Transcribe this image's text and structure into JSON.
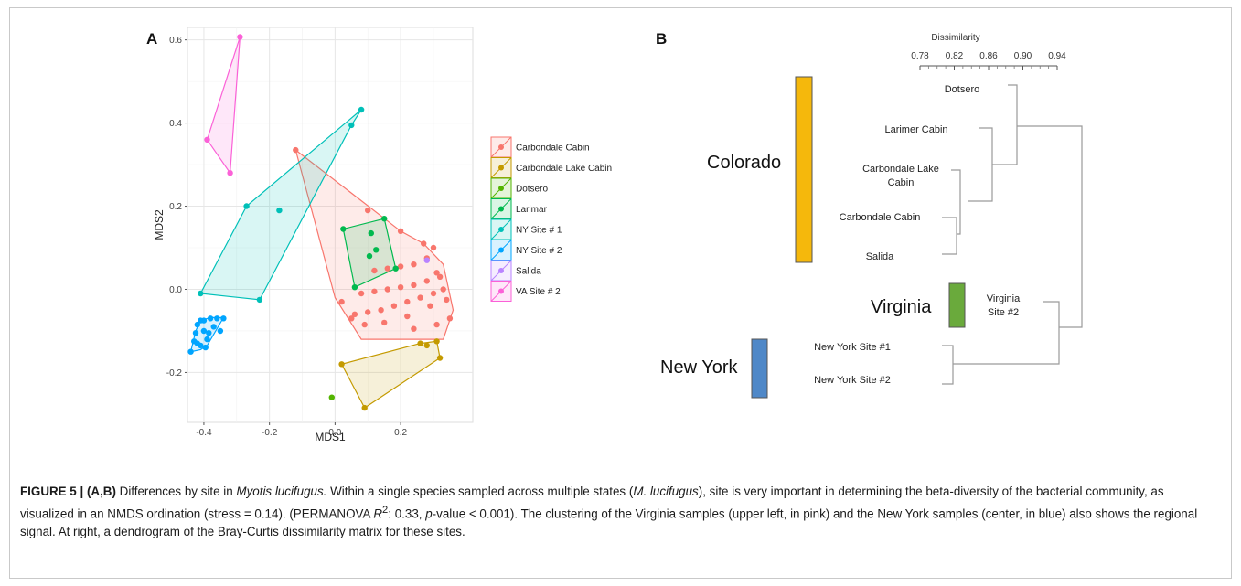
{
  "panel_a": {
    "label": "A",
    "chart_data": {
      "type": "scatter",
      "xlabel": "MDS1",
      "ylabel": "MDS2",
      "xlim": [
        -0.45,
        0.42
      ],
      "ylim": [
        -0.32,
        0.63
      ],
      "x_ticks": [
        -0.4,
        -0.2,
        0.0,
        0.2
      ],
      "x_tick_labels": [
        "-0.4",
        "-0.2",
        "0.0",
        "0.2"
      ],
      "y_ticks": [
        -0.2,
        0.0,
        0.2,
        0.4,
        0.6
      ],
      "y_tick_labels": [
        "-0.2",
        "0.0",
        "0.2",
        "0.4",
        "0.6"
      ],
      "grid": true,
      "legend_position": "right",
      "series": [
        {
          "name": "Carbondale Cabin",
          "color": "#F8766D",
          "fill": "#F8766D",
          "points": [
            [
              -0.12,
              0.335
            ],
            [
              0.1,
              0.19
            ],
            [
              0.2,
              0.14
            ],
            [
              0.27,
              0.11
            ],
            [
              0.3,
              0.1
            ],
            [
              0.28,
              0.075
            ],
            [
              0.24,
              0.06
            ],
            [
              0.2,
              0.055
            ],
            [
              0.16,
              0.05
            ],
            [
              0.12,
              0.045
            ],
            [
              0.31,
              0.04
            ],
            [
              0.32,
              0.03
            ],
            [
              0.28,
              0.02
            ],
            [
              0.24,
              0.01
            ],
            [
              0.2,
              0.005
            ],
            [
              0.16,
              0.0
            ],
            [
              0.12,
              -0.005
            ],
            [
              0.08,
              -0.01
            ],
            [
              0.33,
              0.0
            ],
            [
              0.3,
              -0.01
            ],
            [
              0.26,
              -0.02
            ],
            [
              0.22,
              -0.03
            ],
            [
              0.18,
              -0.04
            ],
            [
              0.14,
              -0.05
            ],
            [
              0.1,
              -0.055
            ],
            [
              0.06,
              -0.06
            ],
            [
              0.34,
              -0.025
            ],
            [
              0.29,
              -0.04
            ],
            [
              0.22,
              -0.065
            ],
            [
              0.15,
              -0.08
            ],
            [
              0.09,
              -0.085
            ],
            [
              0.05,
              -0.07
            ],
            [
              0.35,
              -0.07
            ],
            [
              0.31,
              -0.085
            ],
            [
              0.24,
              -0.095
            ],
            [
              0.02,
              -0.03
            ]
          ],
          "hull": [
            [
              -0.12,
              0.335
            ],
            [
              0.2,
              0.14
            ],
            [
              0.27,
              0.11
            ],
            [
              0.33,
              0.06
            ],
            [
              0.36,
              -0.05
            ],
            [
              0.33,
              -0.12
            ],
            [
              0.08,
              -0.12
            ],
            [
              0.0,
              -0.02
            ]
          ]
        },
        {
          "name": "Carbondale Lake Cabin",
          "color": "#C49A00",
          "fill": "#C49A00",
          "points": [
            [
              0.02,
              -0.18
            ],
            [
              0.09,
              -0.285
            ],
            [
              0.26,
              -0.13
            ],
            [
              0.28,
              -0.135
            ],
            [
              0.31,
              -0.125
            ],
            [
              0.32,
              -0.165
            ]
          ],
          "hull": [
            [
              0.02,
              -0.18
            ],
            [
              0.26,
              -0.13
            ],
            [
              0.31,
              -0.125
            ],
            [
              0.32,
              -0.165
            ],
            [
              0.09,
              -0.285
            ]
          ]
        },
        {
          "name": "Dotsero",
          "color": "#53B400",
          "fill": "#53B400",
          "points": [
            [
              -0.01,
              -0.26
            ]
          ],
          "hull": []
        },
        {
          "name": "Larimar",
          "color": "#00B94E",
          "fill": "#00B94E",
          "points": [
            [
              0.025,
              0.145
            ],
            [
              0.15,
              0.17
            ],
            [
              0.11,
              0.135
            ],
            [
              0.125,
              0.095
            ],
            [
              0.105,
              0.08
            ],
            [
              0.185,
              0.05
            ],
            [
              0.06,
              0.005
            ]
          ],
          "hull": [
            [
              0.025,
              0.145
            ],
            [
              0.15,
              0.17
            ],
            [
              0.185,
              0.05
            ],
            [
              0.06,
              0.005
            ]
          ]
        },
        {
          "name": "NY Site # 1",
          "color": "#00C0B8",
          "fill": "#00C0B8",
          "points": [
            [
              0.08,
              0.432
            ],
            [
              0.05,
              0.395
            ],
            [
              -0.27,
              0.2
            ],
            [
              -0.17,
              0.19
            ],
            [
              -0.23,
              -0.025
            ],
            [
              -0.41,
              -0.01
            ]
          ],
          "hull": [
            [
              0.08,
              0.432
            ],
            [
              0.05,
              0.395
            ],
            [
              -0.23,
              -0.025
            ],
            [
              -0.41,
              -0.01
            ],
            [
              -0.27,
              0.2
            ]
          ]
        },
        {
          "name": "NY Site # 2",
          "color": "#00A5FF",
          "fill": "#00A5FF",
          "points": [
            [
              -0.44,
              -0.15
            ],
            [
              -0.43,
              -0.125
            ],
            [
              -0.425,
              -0.105
            ],
            [
              -0.42,
              -0.085
            ],
            [
              -0.41,
              -0.075
            ],
            [
              -0.4,
              -0.1
            ],
            [
              -0.395,
              -0.14
            ],
            [
              -0.41,
              -0.135
            ],
            [
              -0.38,
              -0.07
            ],
            [
              -0.36,
              -0.07
            ],
            [
              -0.34,
              -0.07
            ],
            [
              -0.37,
              -0.09
            ],
            [
              -0.35,
              -0.1
            ],
            [
              -0.39,
              -0.12
            ],
            [
              -0.4,
              -0.075
            ],
            [
              -0.42,
              -0.13
            ],
            [
              -0.385,
              -0.105
            ]
          ],
          "hull": [
            [
              -0.44,
              -0.15
            ],
            [
              -0.425,
              -0.1
            ],
            [
              -0.41,
              -0.075
            ],
            [
              -0.38,
              -0.068
            ],
            [
              -0.34,
              -0.068
            ],
            [
              -0.39,
              -0.135
            ],
            [
              -0.41,
              -0.145
            ]
          ]
        },
        {
          "name": "Salida",
          "color": "#B983FF",
          "fill": "#B983FF",
          "points": [
            [
              0.28,
              0.07
            ]
          ],
          "hull": []
        },
        {
          "name": "VA Site # 2",
          "color": "#FB61D7",
          "fill": "#FB61D7",
          "points": [
            [
              -0.29,
              0.607
            ],
            [
              -0.39,
              0.36
            ],
            [
              -0.32,
              0.28
            ]
          ],
          "hull": [
            [
              -0.29,
              0.607
            ],
            [
              -0.39,
              0.36
            ],
            [
              -0.32,
              0.28
            ]
          ]
        }
      ]
    }
  },
  "panel_b": {
    "label": "B",
    "axis_title": "Dissimilarity",
    "axis_ticks": [
      "0.78",
      "0.82",
      "0.86",
      "0.90",
      "0.94"
    ],
    "leaves": [
      "Dotsero",
      "Larimer Cabin",
      "Carbondale Lake Cabin",
      "Carbondale Cabin",
      "Salida",
      "Virginia Site #2",
      "New York Site #1",
      "New York Site #2"
    ],
    "leaf_lines": {
      "dotsero": "Dotsero",
      "larimer": "Larimer Cabin",
      "cl_line1": "Carbondale Lake",
      "cl_line2": "Cabin",
      "cc": "Carbondale Cabin",
      "salida": "Salida",
      "va_line1": "Virginia",
      "va_line2": "Site #2",
      "ny1": "New York Site #1",
      "ny2": "New York Site #2"
    },
    "regions": [
      {
        "name": "Colorado",
        "color": "#F5B80C"
      },
      {
        "name": "Virginia",
        "color": "#6AAA3C"
      },
      {
        "name": "New York",
        "color": "#4F88C8"
      }
    ]
  },
  "caption": {
    "label": "FIGURE 5 | (A,B)",
    "t1": " Differences by site in ",
    "i1": "Myotis lucifugus.",
    "t2": " Within a single species sampled across multiple states (",
    "i2": "M. lucifugus",
    "t3": "), site is very important in determining the beta-diversity of the bacterial community, as visualized in an NMDS ordination (stress = 0.14). (PERMANOVA ",
    "i3": "R",
    "sup": "2",
    "t4": ": 0.33, ",
    "i4": "p",
    "t5": "-value < 0.001). The clustering of the Virginia samples (upper left, in pink) and the New York samples (center, in blue) also shows the regional signal. At right, a dendrogram of the Bray-Curtis dissimilarity matrix for these sites."
  }
}
